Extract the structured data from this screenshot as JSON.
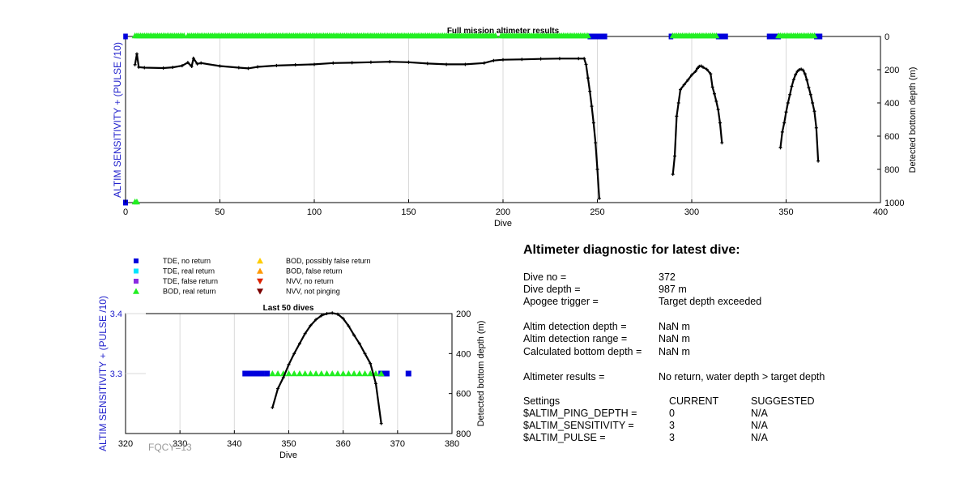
{
  "colors": {
    "tde_no": "#0000dd",
    "tde_real": "#00e5ff",
    "tde_false": "#8a2be2",
    "bod_real": "#22ee22",
    "bod_possible": "#ffcc00",
    "bod_false": "#ff9900",
    "nvv_no": "#dd2200",
    "nvv_not": "#7a0000",
    "depth_line": "#000000",
    "left_axis": "#2222cc"
  },
  "legend": {
    "items": [
      {
        "label": "TDE, no return",
        "marker": "square",
        "color": "#0000dd"
      },
      {
        "label": "TDE, real return",
        "marker": "square",
        "color": "#00e5ff"
      },
      {
        "label": "TDE, false return",
        "marker": "square",
        "color": "#8a2be2"
      },
      {
        "label": "BOD, real return",
        "marker": "triangle-up",
        "color": "#22ee22"
      },
      {
        "label": "BOD, possibly false return",
        "marker": "triangle-up",
        "color": "#ffcc00"
      },
      {
        "label": "BOD, false return",
        "marker": "triangle-up",
        "color": "#ff9900"
      },
      {
        "label": "NVV, no return",
        "marker": "triangle-down",
        "color": "#dd2200"
      },
      {
        "label": "NVV, not pinging",
        "marker": "triangle-down",
        "color": "#7a0000"
      }
    ]
  },
  "chart_data": [
    {
      "type": "line",
      "title": "Full mission altimeter results",
      "xlabel": "Dive",
      "ylabel_left": "ALTIM SENSITIVITY + (PULSE /10)",
      "ylabel_right": "Detected bottom depth (m)",
      "xlim": [
        0,
        400
      ],
      "xticks": [
        0,
        50,
        100,
        150,
        200,
        250,
        300,
        350,
        400
      ],
      "ylim_right": [
        0,
        1000
      ],
      "yticks_right": [
        0,
        200,
        400,
        600,
        800,
        1000
      ],
      "grid": "vertical",
      "depth_segments": [
        [
          [
            5,
            170
          ],
          [
            6,
            105
          ],
          [
            7,
            185
          ],
          [
            10,
            188
          ],
          [
            20,
            190
          ],
          [
            25,
            186
          ],
          [
            30,
            176
          ],
          [
            33,
            157
          ],
          [
            35,
            180
          ],
          [
            36,
            132
          ],
          [
            38,
            165
          ],
          [
            40,
            160
          ],
          [
            50,
            178
          ],
          [
            60,
            188
          ],
          [
            65,
            192
          ],
          [
            70,
            183
          ],
          [
            80,
            175
          ],
          [
            90,
            171
          ],
          [
            100,
            168
          ],
          [
            110,
            160
          ],
          [
            120,
            158
          ],
          [
            130,
            155
          ],
          [
            140,
            152
          ],
          [
            150,
            155
          ],
          [
            160,
            163
          ],
          [
            170,
            168
          ],
          [
            180,
            168
          ],
          [
            190,
            160
          ],
          [
            195,
            145
          ],
          [
            200,
            140
          ],
          [
            210,
            138
          ],
          [
            220,
            135
          ],
          [
            230,
            133
          ],
          [
            240,
            133
          ],
          [
            243,
            133
          ],
          [
            244,
            168
          ],
          [
            245,
            250
          ],
          [
            246,
            330
          ],
          [
            247,
            420
          ],
          [
            248,
            520
          ],
          [
            249,
            640
          ],
          [
            250,
            800
          ],
          [
            251,
            975
          ]
        ],
        [
          [
            290,
            830
          ],
          [
            291,
            720
          ],
          [
            292,
            480
          ],
          [
            293,
            400
          ],
          [
            294,
            320
          ],
          [
            296,
            290
          ],
          [
            298,
            262
          ],
          [
            300,
            232
          ],
          [
            302,
            210
          ],
          [
            303,
            192
          ],
          [
            304,
            180
          ],
          [
            305,
            178
          ],
          [
            306,
            185
          ],
          [
            308,
            198
          ],
          [
            310,
            225
          ],
          [
            311,
            305
          ],
          [
            312,
            345
          ],
          [
            313,
            390
          ],
          [
            314,
            440
          ],
          [
            315,
            520
          ],
          [
            316,
            640
          ]
        ],
        [
          [
            347,
            670
          ],
          [
            348,
            575
          ],
          [
            349,
            520
          ],
          [
            350,
            455
          ],
          [
            351,
            400
          ],
          [
            352,
            350
          ],
          [
            353,
            300
          ],
          [
            354,
            260
          ],
          [
            355,
            230
          ],
          [
            356,
            210
          ],
          [
            357,
            200
          ],
          [
            358,
            197
          ],
          [
            359,
            203
          ],
          [
            360,
            225
          ],
          [
            361,
            262
          ],
          [
            362,
            308
          ],
          [
            363,
            350
          ],
          [
            364,
            400
          ],
          [
            365,
            450
          ],
          [
            366,
            550
          ],
          [
            367,
            750
          ]
        ]
      ],
      "tde_no_return_dives": [
        0,
        246,
        247,
        248,
        249,
        250,
        251,
        252,
        253,
        254,
        289,
        314,
        315,
        316,
        317,
        318,
        341,
        342,
        343,
        344,
        345,
        346,
        366,
        367,
        368
      ],
      "bod_real_return_top_dives": [
        5,
        6,
        7,
        8,
        9,
        10,
        11,
        12,
        13,
        14,
        15,
        16,
        17,
        18,
        19,
        20,
        21,
        22,
        23,
        24,
        25,
        26,
        27,
        28,
        29,
        30,
        31,
        33,
        34,
        35,
        36,
        37,
        38,
        39,
        40,
        41,
        42,
        43,
        44,
        45,
        46,
        47,
        48,
        49,
        50,
        51,
        52,
        53,
        54,
        55,
        56,
        57,
        58,
        59,
        60,
        61,
        62,
        63,
        64,
        65,
        66,
        67,
        68,
        69,
        70,
        71,
        72,
        73,
        74,
        75,
        76,
        77,
        78,
        79,
        80,
        81,
        82,
        83,
        84,
        85,
        86,
        87,
        88,
        89,
        90,
        91,
        92,
        93,
        94,
        95,
        96,
        97,
        98,
        99,
        100,
        101,
        102,
        103,
        104,
        105,
        106,
        107,
        108,
        109,
        110,
        111,
        112,
        113,
        114,
        115,
        116,
        117,
        118,
        119,
        120,
        121,
        122,
        123,
        124,
        125,
        126,
        127,
        128,
        129,
        130,
        131,
        132,
        133,
        134,
        135,
        136,
        137,
        138,
        139,
        140,
        141,
        142,
        143,
        144,
        145,
        146,
        147,
        148,
        149,
        150,
        151,
        152,
        153,
        154,
        155,
        156,
        157,
        158,
        159,
        160,
        161,
        162,
        163,
        164,
        165,
        166,
        167,
        168,
        169,
        170,
        171,
        172,
        173,
        174,
        175,
        176,
        177,
        178,
        179,
        180,
        181,
        182,
        183,
        184,
        185,
        186,
        187,
        188,
        189,
        190,
        191,
        192,
        193,
        194,
        195,
        196,
        199,
        200,
        201,
        202,
        203,
        204,
        205,
        206,
        207,
        208,
        209,
        210,
        211,
        212,
        213,
        214,
        215,
        216,
        217,
        218,
        219,
        220,
        221,
        222,
        223,
        224,
        225,
        226,
        227,
        228,
        229,
        230,
        231,
        232,
        233,
        234,
        235,
        236,
        237,
        238,
        239,
        240,
        241,
        242,
        243,
        244,
        245,
        290,
        291,
        292,
        293,
        294,
        295,
        296,
        297,
        298,
        299,
        300,
        301,
        302,
        303,
        304,
        305,
        306,
        307,
        308,
        309,
        310,
        311,
        312,
        313,
        346,
        347,
        348,
        349,
        350,
        351,
        352,
        353,
        354,
        355,
        356,
        357,
        358,
        359,
        360,
        361,
        362,
        363,
        364,
        365
      ],
      "bottom_markers": [
        {
          "dive": 0,
          "kind": "tde_no"
        },
        {
          "dive": 5,
          "kind": "bod_real"
        },
        {
          "dive": 6,
          "kind": "bod_real"
        }
      ]
    },
    {
      "type": "line",
      "title": "Last 50 dives",
      "xlabel": "Dive",
      "ylabel_left": "ALTIM SENSITIVITY + (PULSE /10)",
      "ylabel_right": "Detected bottom depth (m)",
      "xlim": [
        320,
        380
      ],
      "xticks": [
        320,
        330,
        340,
        350,
        360,
        370,
        380
      ],
      "ylim_left": [
        3.2,
        3.4
      ],
      "yticks_left": [
        "3.3",
        "3.4"
      ],
      "ytick_left_values": [
        3.3,
        3.4
      ],
      "ylim_right": [
        200,
        800
      ],
      "yticks_right": [
        200,
        400,
        600,
        800
      ],
      "grid": "vertical",
      "depth_segments": [
        [
          [
            347,
            670
          ],
          [
            348,
            575
          ],
          [
            349,
            520
          ],
          [
            350,
            455
          ],
          [
            351,
            400
          ],
          [
            352,
            350
          ],
          [
            353,
            300
          ],
          [
            354,
            260
          ],
          [
            355,
            230
          ],
          [
            356,
            210
          ],
          [
            357,
            200
          ],
          [
            358,
            197
          ],
          [
            359,
            203
          ],
          [
            360,
            225
          ],
          [
            361,
            262
          ],
          [
            362,
            308
          ],
          [
            363,
            350
          ],
          [
            364,
            400
          ],
          [
            365,
            450
          ],
          [
            366,
            550
          ],
          [
            367,
            750
          ]
        ]
      ],
      "tde_no_return_dives": [
        342,
        343,
        344,
        345,
        346,
        367,
        368,
        372
      ],
      "bod_real_return_dives": [
        347,
        348,
        349,
        350,
        351,
        352,
        353,
        354,
        355,
        356,
        357,
        358,
        359,
        360,
        361,
        362,
        363,
        364,
        365,
        366,
        367
      ],
      "marker_level": 3.3
    }
  ],
  "diagnostic": {
    "title": "Altimeter diagnostic for latest dive:",
    "rows": [
      {
        "label": "Dive no =",
        "value": "372"
      },
      {
        "label": "Dive depth =",
        "value": "987 m"
      },
      {
        "label": "Apogee trigger =",
        "value": "Target depth exceeded"
      },
      {
        "label": "Altim detection depth =",
        "value": "NaN m"
      },
      {
        "label": "Altim detection range =",
        "value": "NaN m"
      },
      {
        "label": "Calculated bottom depth =",
        "value": "NaN m"
      },
      {
        "label": "Altimeter results =",
        "value": "No return, water depth > target depth"
      }
    ],
    "settings": {
      "header": {
        "label": "Settings",
        "current": "CURRENT",
        "suggested": "SUGGESTED"
      },
      "rows": [
        {
          "label": "$ALTIM_PING_DEPTH =",
          "current": "0",
          "suggested": "N/A"
        },
        {
          "label": "$ALTIM_SENSITIVITY =",
          "current": "3",
          "suggested": "N/A"
        },
        {
          "label": "$ALTIM_PULSE =",
          "current": "3",
          "suggested": "N/A"
        }
      ]
    }
  },
  "footer": {
    "fqcy": "FQCY=13"
  }
}
